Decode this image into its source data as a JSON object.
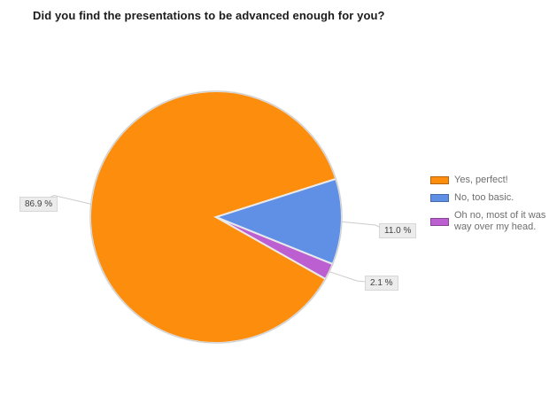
{
  "chart_data": {
    "type": "pie",
    "title": "Did you find the presentations to be advanced enough for you?",
    "legend_position": "right",
    "value_labels": "outside-with-leader-lines",
    "slices": [
      {
        "label": "Yes, perfect!",
        "value": 86.9,
        "percent_label": "86.9 %",
        "color": "#fc8d0d"
      },
      {
        "label": "No, too basic.",
        "value": 11.0,
        "percent_label": "11.0 %",
        "color": "#6090e6"
      },
      {
        "label": "Oh no, most of it was way over my head.",
        "value": 2.1,
        "percent_label": "2.1 %",
        "color": "#bc5fd0"
      }
    ],
    "colors": {
      "leader_line": "#cccccc",
      "pie_outline": "#cfcfcf",
      "slice_gap": "#e9e9e9",
      "label_box_bg": "#ececec",
      "label_box_border": "#d7d7d7"
    }
  }
}
